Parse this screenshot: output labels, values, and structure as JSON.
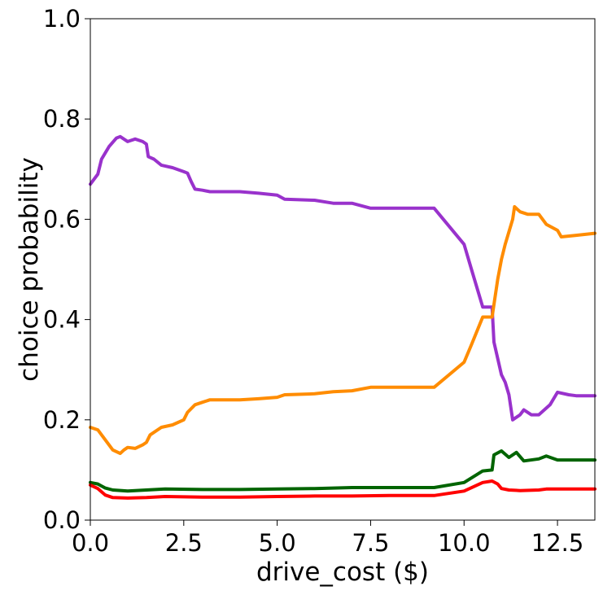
{
  "chart_data": {
    "type": "line",
    "xlabel": "drive_cost ($)",
    "ylabel": "choice probability",
    "xlim": [
      0,
      13.5
    ],
    "ylim": [
      0,
      1
    ],
    "xticks": [
      0,
      2.5,
      5,
      7.5,
      10,
      12.5
    ],
    "xtick_labels": [
      "0.0",
      "2.5",
      "5.0",
      "7.5",
      "10.0",
      "12.5"
    ],
    "yticks": [
      0,
      0.2,
      0.4,
      0.6,
      0.8,
      1.0
    ],
    "ytick_labels": [
      "0.0",
      "0.2",
      "0.4",
      "0.6",
      "0.8",
      "1.0"
    ],
    "grid": false,
    "legend": "none",
    "series": [
      {
        "color": "#9932CC",
        "points": [
          [
            0,
            0.67
          ],
          [
            0.2,
            0.69
          ],
          [
            0.3,
            0.72
          ],
          [
            0.5,
            0.745
          ],
          [
            0.7,
            0.762
          ],
          [
            0.8,
            0.765
          ],
          [
            1.0,
            0.755
          ],
          [
            1.2,
            0.76
          ],
          [
            1.4,
            0.755
          ],
          [
            1.5,
            0.75
          ],
          [
            1.55,
            0.725
          ],
          [
            1.7,
            0.72
          ],
          [
            1.9,
            0.708
          ],
          [
            2.2,
            0.703
          ],
          [
            2.5,
            0.695
          ],
          [
            2.6,
            0.692
          ],
          [
            2.7,
            0.675
          ],
          [
            2.8,
            0.66
          ],
          [
            3.0,
            0.658
          ],
          [
            3.2,
            0.655
          ],
          [
            4.0,
            0.655
          ],
          [
            4.5,
            0.652
          ],
          [
            5.0,
            0.648
          ],
          [
            5.2,
            0.64
          ],
          [
            6.0,
            0.638
          ],
          [
            6.5,
            0.632
          ],
          [
            7.0,
            0.632
          ],
          [
            7.5,
            0.622
          ],
          [
            9.2,
            0.622
          ],
          [
            10.0,
            0.55
          ],
          [
            10.2,
            0.5
          ],
          [
            10.5,
            0.425
          ],
          [
            10.75,
            0.425
          ],
          [
            10.8,
            0.355
          ],
          [
            11.0,
            0.29
          ],
          [
            11.1,
            0.275
          ],
          [
            11.2,
            0.25
          ],
          [
            11.3,
            0.2
          ],
          [
            11.5,
            0.21
          ],
          [
            11.6,
            0.22
          ],
          [
            11.8,
            0.21
          ],
          [
            12.0,
            0.21
          ],
          [
            12.3,
            0.23
          ],
          [
            12.5,
            0.255
          ],
          [
            12.8,
            0.25
          ],
          [
            13.0,
            0.248
          ],
          [
            13.5,
            0.248
          ]
        ]
      },
      {
        "color": "#FF8C00",
        "points": [
          [
            0,
            0.185
          ],
          [
            0.2,
            0.18
          ],
          [
            0.4,
            0.16
          ],
          [
            0.6,
            0.14
          ],
          [
            0.8,
            0.133
          ],
          [
            0.9,
            0.14
          ],
          [
            1.0,
            0.145
          ],
          [
            1.2,
            0.143
          ],
          [
            1.4,
            0.15
          ],
          [
            1.5,
            0.155
          ],
          [
            1.6,
            0.17
          ],
          [
            1.9,
            0.185
          ],
          [
            2.2,
            0.19
          ],
          [
            2.5,
            0.2
          ],
          [
            2.6,
            0.215
          ],
          [
            2.8,
            0.23
          ],
          [
            3.0,
            0.235
          ],
          [
            3.2,
            0.24
          ],
          [
            4.0,
            0.24
          ],
          [
            4.5,
            0.242
          ],
          [
            5.0,
            0.245
          ],
          [
            5.2,
            0.25
          ],
          [
            6.0,
            0.252
          ],
          [
            6.5,
            0.256
          ],
          [
            7.0,
            0.258
          ],
          [
            7.5,
            0.265
          ],
          [
            9.2,
            0.265
          ],
          [
            10.0,
            0.315
          ],
          [
            10.2,
            0.35
          ],
          [
            10.5,
            0.405
          ],
          [
            10.75,
            0.405
          ],
          [
            10.8,
            0.43
          ],
          [
            10.9,
            0.48
          ],
          [
            11.0,
            0.52
          ],
          [
            11.1,
            0.55
          ],
          [
            11.2,
            0.575
          ],
          [
            11.3,
            0.6
          ],
          [
            11.35,
            0.625
          ],
          [
            11.5,
            0.615
          ],
          [
            11.7,
            0.61
          ],
          [
            12.0,
            0.61
          ],
          [
            12.2,
            0.59
          ],
          [
            12.5,
            0.578
          ],
          [
            12.6,
            0.565
          ],
          [
            13.0,
            0.568
          ],
          [
            13.5,
            0.572
          ]
        ]
      },
      {
        "color": "#006400",
        "points": [
          [
            0,
            0.075
          ],
          [
            0.2,
            0.072
          ],
          [
            0.4,
            0.064
          ],
          [
            0.6,
            0.06
          ],
          [
            1.0,
            0.058
          ],
          [
            1.5,
            0.06
          ],
          [
            2.0,
            0.062
          ],
          [
            3.0,
            0.061
          ],
          [
            4.0,
            0.061
          ],
          [
            5.0,
            0.062
          ],
          [
            6.0,
            0.063
          ],
          [
            7.0,
            0.065
          ],
          [
            8.0,
            0.065
          ],
          [
            9.2,
            0.065
          ],
          [
            10.0,
            0.075
          ],
          [
            10.5,
            0.098
          ],
          [
            10.75,
            0.1
          ],
          [
            10.8,
            0.13
          ],
          [
            11.0,
            0.138
          ],
          [
            11.2,
            0.125
          ],
          [
            11.4,
            0.135
          ],
          [
            11.6,
            0.118
          ],
          [
            12.0,
            0.122
          ],
          [
            12.2,
            0.128
          ],
          [
            12.5,
            0.12
          ],
          [
            13.0,
            0.12
          ],
          [
            13.5,
            0.12
          ]
        ]
      },
      {
        "color": "#FF0000",
        "points": [
          [
            0,
            0.07
          ],
          [
            0.2,
            0.063
          ],
          [
            0.4,
            0.05
          ],
          [
            0.6,
            0.045
          ],
          [
            1.0,
            0.044
          ],
          [
            1.5,
            0.045
          ],
          [
            2.0,
            0.047
          ],
          [
            3.0,
            0.046
          ],
          [
            4.0,
            0.046
          ],
          [
            5.0,
            0.047
          ],
          [
            6.0,
            0.048
          ],
          [
            7.0,
            0.048
          ],
          [
            8.0,
            0.049
          ],
          [
            9.2,
            0.049
          ],
          [
            10.0,
            0.058
          ],
          [
            10.5,
            0.075
          ],
          [
            10.75,
            0.078
          ],
          [
            10.9,
            0.072
          ],
          [
            11.0,
            0.063
          ],
          [
            11.2,
            0.06
          ],
          [
            11.5,
            0.059
          ],
          [
            12.0,
            0.06
          ],
          [
            12.2,
            0.062
          ],
          [
            12.5,
            0.062
          ],
          [
            13.0,
            0.062
          ],
          [
            13.5,
            0.062
          ]
        ]
      }
    ]
  }
}
